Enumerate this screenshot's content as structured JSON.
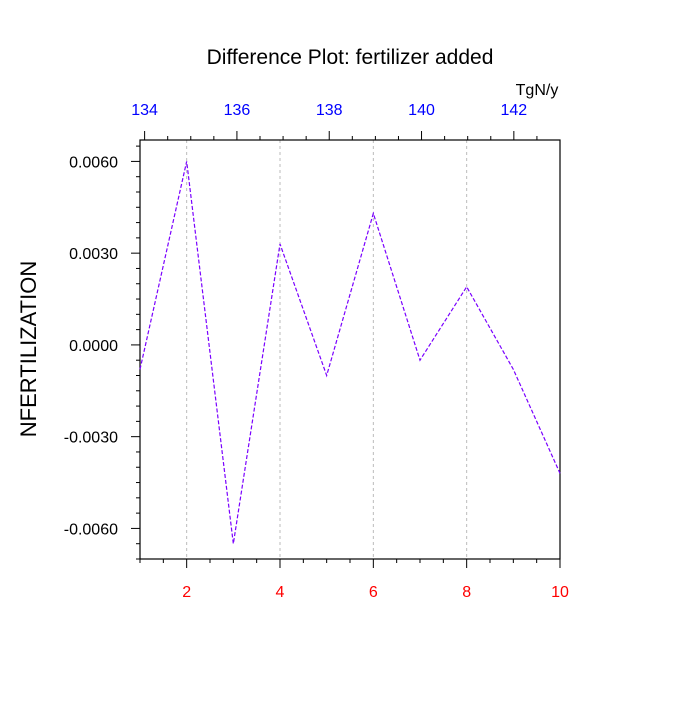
{
  "chart_data": {
    "type": "line",
    "title": "Difference Plot: fertilizer added",
    "xlabel": "",
    "ylabel": "NFERTILIZATION",
    "top_axis_unit": "TgN/y",
    "x": [
      1,
      2,
      3,
      4,
      5,
      6,
      7,
      8,
      9,
      10
    ],
    "series": [
      {
        "values": [
          -0.0008,
          0.006,
          -0.0065,
          0.0033,
          -0.001,
          0.0043,
          -0.0005,
          0.0019,
          -0.0008,
          -0.0042
        ]
      }
    ],
    "xlim": [
      1,
      10
    ],
    "ylim": [
      -0.007,
      0.0067
    ],
    "x_ticks": [
      2,
      4,
      6,
      8,
      10
    ],
    "x_tick_labels": [
      "2",
      "4",
      "6",
      "8",
      "10"
    ],
    "y_ticks": [
      0.006,
      0.003,
      0.0,
      -0.003,
      -0.006
    ],
    "y_tick_labels": [
      "0.0060",
      "0.0030",
      "0.0000",
      "-0.0030",
      "-0.0060"
    ],
    "top_axis_ticks": [
      134,
      136,
      138,
      140,
      142
    ],
    "top_axis_tick_labels": [
      "134",
      "136",
      "138",
      "140",
      "142"
    ],
    "top_axis_lim": [
      133.9,
      143.0
    ],
    "grid": "vertical-dashed",
    "colors": {
      "line": "#7a00ff",
      "bottom_ticks": "#ff0000",
      "top_ticks": "#0000ff",
      "grid": "#bbbbbb"
    }
  }
}
